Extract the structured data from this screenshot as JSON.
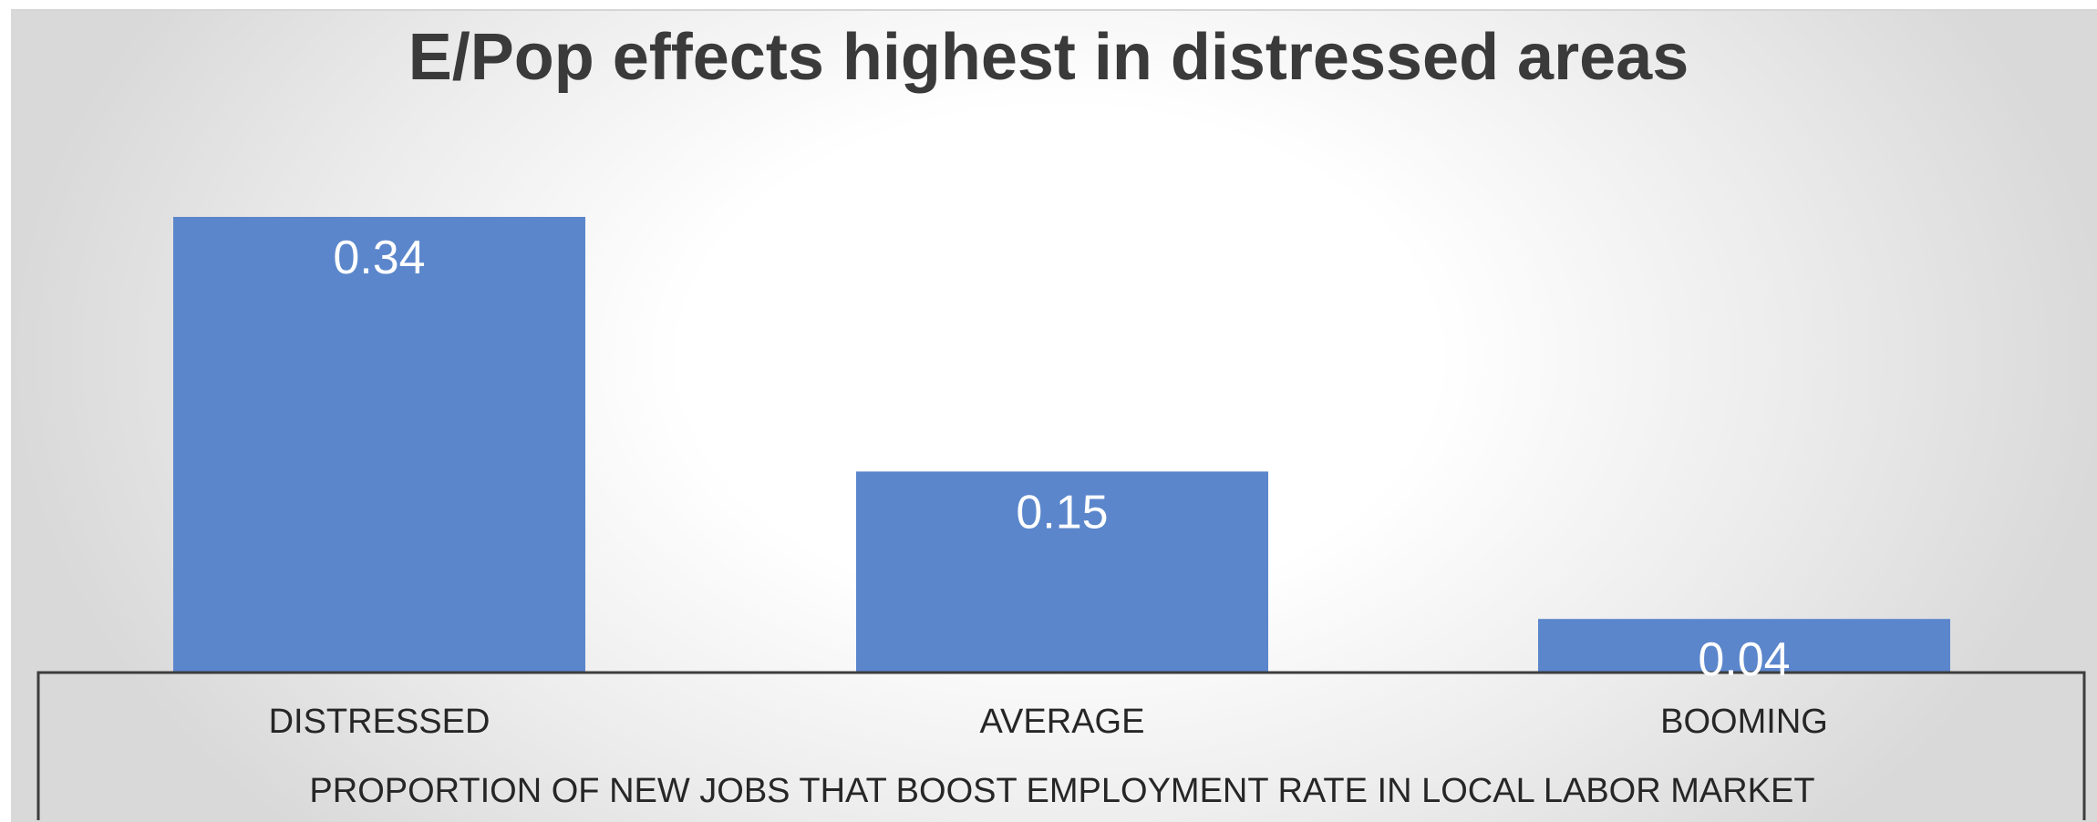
{
  "chart_data": {
    "type": "bar",
    "title": "E/Pop effects highest in distressed areas",
    "xlabel": "PROPORTION OF NEW JOBS THAT BOOST EMPLOYMENT RATE IN LOCAL LABOR MARKET",
    "ylabel": "",
    "categories": [
      "DISTRESSED",
      "AVERAGE",
      "BOOMING"
    ],
    "values": [
      0.34,
      0.15,
      0.04
    ],
    "data_labels": [
      "0.34",
      "0.15",
      "0.04"
    ],
    "ylim": [
      0,
      0.4
    ],
    "grid": false,
    "bar_color": "#5b86cc"
  }
}
